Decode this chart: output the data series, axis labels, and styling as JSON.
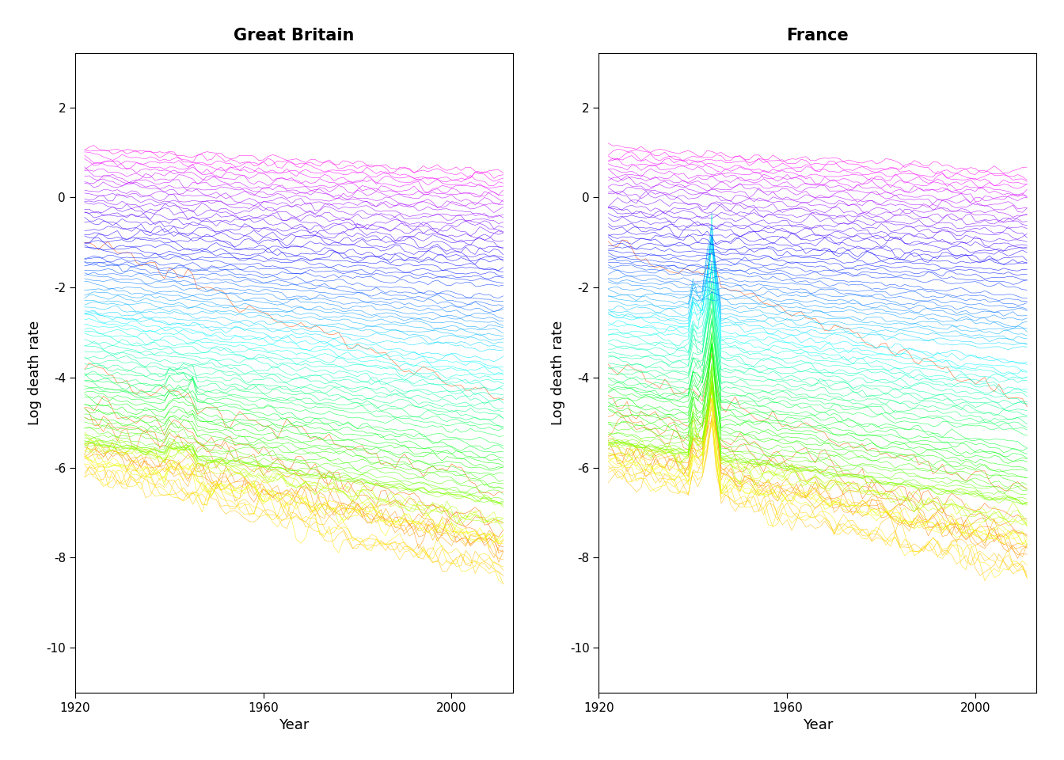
{
  "title_left": "Great Britain",
  "title_right": "France",
  "xlabel": "Year",
  "ylabel": "Log death rate",
  "year_start": 1922,
  "year_end": 2011,
  "age_min": 0,
  "age_max": 110,
  "ylim": [
    -11,
    3.2
  ],
  "yticks": [
    2,
    0,
    -2,
    -4,
    -6,
    -8,
    -10
  ],
  "xticks": [
    1920,
    1960,
    2000
  ],
  "background_color": "#ffffff",
  "plot_background": "#ffffff",
  "title_fontsize": 15,
  "axis_fontsize": 13,
  "tick_fontsize": 11,
  "line_alpha": 0.85,
  "line_width": 0.4
}
